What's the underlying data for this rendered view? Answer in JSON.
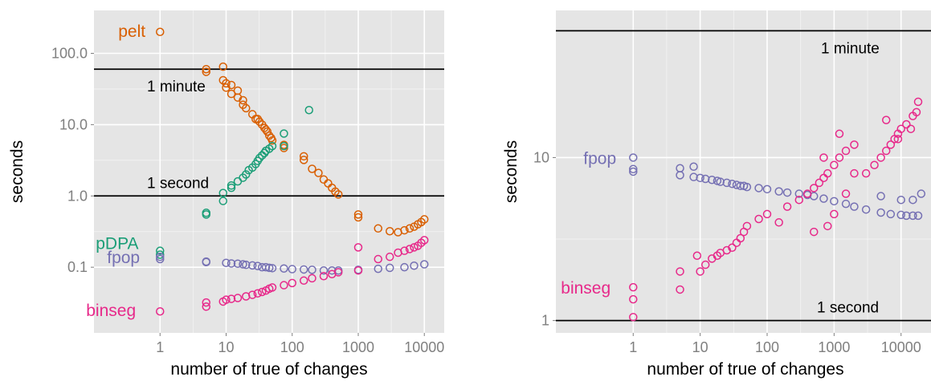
{
  "colors": {
    "pelt": "#d95f02",
    "pDPA": "#1b9e77",
    "fpop": "#7570b3",
    "binseg": "#e7298a",
    "panel_bg": "#e5e5e5",
    "grid": "#ffffff",
    "ref_line": "#000000"
  },
  "chart_data": [
    {
      "type": "scatter",
      "xlabel": "number of true of changes",
      "ylabel": "seconds",
      "x_scale": "log10",
      "y_scale": "log10",
      "xlim": [
        0.1,
        20000
      ],
      "ylim": [
        0.012,
        400
      ],
      "x_ticks": [
        {
          "value": 1,
          "label": "1"
        },
        {
          "value": 10,
          "label": "10"
        },
        {
          "value": 100,
          "label": "100"
        },
        {
          "value": 1000,
          "label": "1000"
        },
        {
          "value": 10000,
          "label": "10000"
        }
      ],
      "y_ticks": [
        {
          "value": 0.1,
          "label": "0.1"
        },
        {
          "value": 1,
          "label": "1.0"
        },
        {
          "value": 10,
          "label": "10.0"
        },
        {
          "value": 100,
          "label": "100.0"
        }
      ],
      "grid": true,
      "reference_lines": [
        {
          "y": 60,
          "label": "1 minute"
        },
        {
          "y": 1,
          "label": "1 second"
        }
      ],
      "series": [
        {
          "name": "pelt",
          "x": [
            1,
            5,
            5,
            9,
            9,
            10,
            10,
            12,
            12,
            15,
            15,
            18,
            18,
            20,
            25,
            28,
            30,
            32,
            35,
            38,
            40,
            42,
            45,
            48,
            50,
            75,
            75,
            150,
            150,
            200,
            250,
            300,
            350,
            400,
            450,
            500,
            1000,
            1000,
            2000,
            3000,
            4000,
            5000,
            6000,
            7000,
            8000,
            9000,
            10000
          ],
          "y": [
            200,
            55,
            60,
            65,
            42,
            38,
            33,
            36,
            27,
            30,
            24,
            22,
            19,
            17,
            14,
            12,
            12,
            11,
            10,
            9,
            8.5,
            8,
            7,
            6.5,
            6,
            5.2,
            4.7,
            3.6,
            3.2,
            2.4,
            2.1,
            1.7,
            1.5,
            1.3,
            1.15,
            1.05,
            0.55,
            0.5,
            0.35,
            0.32,
            0.31,
            0.33,
            0.35,
            0.37,
            0.4,
            0.43,
            0.47
          ]
        },
        {
          "name": "pDPA",
          "x": [
            1,
            1,
            5,
            5,
            9,
            9,
            12,
            12,
            15,
            18,
            20,
            22,
            25,
            28,
            30,
            32,
            35,
            38,
            40,
            45,
            50,
            75,
            75,
            180
          ],
          "y": [
            0.17,
            0.15,
            0.58,
            0.55,
            1.1,
            0.85,
            1.3,
            1.4,
            1.6,
            1.8,
            2.0,
            2.3,
            2.5,
            2.8,
            3.1,
            3.4,
            3.7,
            4.0,
            4.3,
            4.6,
            5.0,
            7.5,
            5.0,
            16
          ]
        },
        {
          "name": "fpop",
          "x": [
            1,
            1,
            5,
            5,
            10,
            12,
            15,
            18,
            20,
            25,
            30,
            35,
            40,
            45,
            50,
            75,
            100,
            150,
            200,
            300,
            400,
            500,
            1000,
            2000,
            3000,
            5000,
            7000,
            10000
          ],
          "y": [
            0.14,
            0.13,
            0.12,
            0.118,
            0.115,
            0.113,
            0.112,
            0.11,
            0.108,
            0.106,
            0.104,
            0.1,
            0.1,
            0.098,
            0.097,
            0.096,
            0.094,
            0.093,
            0.092,
            0.09,
            0.09,
            0.09,
            0.092,
            0.095,
            0.098,
            0.1,
            0.105,
            0.11
          ]
        },
        {
          "name": "binseg",
          "x": [
            1,
            5,
            5,
            9,
            10,
            12,
            15,
            20,
            25,
            30,
            35,
            40,
            45,
            50,
            75,
            100,
            150,
            200,
            300,
            400,
            500,
            1000,
            1000,
            2000,
            3000,
            4000,
            5000,
            6000,
            7000,
            8000,
            9000,
            10000
          ],
          "y": [
            0.024,
            0.028,
            0.032,
            0.033,
            0.035,
            0.036,
            0.037,
            0.039,
            0.041,
            0.043,
            0.045,
            0.047,
            0.05,
            0.052,
            0.056,
            0.06,
            0.065,
            0.07,
            0.075,
            0.08,
            0.085,
            0.09,
            0.19,
            0.13,
            0.14,
            0.16,
            0.17,
            0.18,
            0.19,
            0.2,
            0.22,
            0.24
          ]
        }
      ],
      "labels": [
        {
          "series": "pelt",
          "text": "pelt"
        },
        {
          "series": "pDPA",
          "text": "pDPA"
        },
        {
          "series": "fpop",
          "text": "fpop"
        },
        {
          "series": "binseg",
          "text": "binseg"
        }
      ]
    },
    {
      "type": "scatter",
      "xlabel": "number of true of changes",
      "ylabel": "seconds",
      "x_scale": "log10",
      "y_scale": "log10",
      "xlim": [
        0.07,
        28000
      ],
      "ylim": [
        0.84,
        80
      ],
      "x_ticks": [
        {
          "value": 1,
          "label": "1"
        },
        {
          "value": 10,
          "label": "10"
        },
        {
          "value": 100,
          "label": "100"
        },
        {
          "value": 1000,
          "label": "1000"
        },
        {
          "value": 10000,
          "label": "10000"
        }
      ],
      "y_ticks": [
        {
          "value": 1,
          "label": "1"
        },
        {
          "value": 10,
          "label": "10"
        }
      ],
      "grid": true,
      "reference_lines": [
        {
          "y": 60,
          "label": "1 minute"
        },
        {
          "y": 1,
          "label": "1 second"
        }
      ],
      "series": [
        {
          "name": "fpop",
          "x": [
            1,
            1,
            1,
            5,
            5,
            8,
            8,
            10,
            12,
            15,
            18,
            20,
            25,
            30,
            35,
            40,
            45,
            50,
            75,
            100,
            150,
            200,
            300,
            400,
            500,
            700,
            1000,
            1500,
            2000,
            3000,
            5000,
            7000,
            10000,
            12000,
            15000,
            18000,
            5000,
            10000,
            15000,
            20000
          ],
          "y": [
            10,
            8.5,
            8.2,
            8.6,
            7.8,
            8.8,
            7.6,
            7.5,
            7.4,
            7.3,
            7.2,
            7.1,
            7.0,
            6.9,
            6.8,
            6.7,
            6.7,
            6.6,
            6.5,
            6.4,
            6.2,
            6.1,
            6.0,
            5.9,
            5.8,
            5.6,
            5.4,
            5.2,
            5.0,
            4.8,
            4.6,
            4.5,
            4.45,
            4.4,
            4.4,
            4.4,
            5.8,
            5.5,
            5.5,
            6.0
          ]
        },
        {
          "name": "binseg",
          "x": [
            1,
            1,
            1,
            5,
            5,
            9,
            10,
            12,
            15,
            18,
            20,
            25,
            30,
            35,
            40,
            45,
            50,
            75,
            100,
            150,
            200,
            300,
            400,
            500,
            600,
            700,
            800,
            1000,
            1200,
            1500,
            2000,
            3000,
            4000,
            5000,
            6000,
            7000,
            8000,
            9000,
            10000,
            12000,
            15000,
            18000,
            500,
            800,
            1000,
            1500,
            2000,
            700,
            1200,
            6000,
            9000,
            14000,
            17000
          ],
          "y": [
            1.6,
            1.35,
            1.05,
            2.0,
            1.55,
            2.5,
            2.0,
            2.2,
            2.4,
            2.5,
            2.6,
            2.7,
            2.8,
            3.0,
            3.2,
            3.5,
            3.8,
            4.2,
            4.5,
            4.0,
            5.0,
            5.5,
            6.0,
            6.5,
            7.0,
            7.5,
            8.0,
            9.0,
            10.0,
            11.0,
            12.0,
            8.0,
            9.0,
            10.0,
            11.0,
            12.0,
            13.0,
            14.0,
            15.0,
            16.0,
            18.0,
            22.0,
            3.5,
            3.8,
            4.5,
            6.0,
            8.0,
            10.0,
            14.0,
            17.0,
            13.0,
            15.0,
            19.0
          ]
        }
      ],
      "labels": [
        {
          "series": "fpop",
          "text": "fpop"
        },
        {
          "series": "binseg",
          "text": "binseg"
        }
      ]
    }
  ]
}
